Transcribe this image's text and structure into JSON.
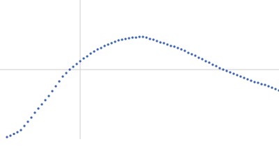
{
  "chart_data": {
    "type": "scatter",
    "xlim": [
      0,
      400
    ],
    "ylim": [
      0,
      200
    ],
    "xref": 115,
    "yref": 100,
    "ref_color": "#cccccc",
    "series": [
      {
        "color": "#3a63b0",
        "x": [
          10,
          15,
          20,
          25,
          30,
          35,
          40,
          45,
          50,
          55,
          60,
          65,
          70,
          75,
          80,
          85,
          90,
          95,
          100,
          105,
          110,
          115,
          120,
          125,
          130,
          135,
          140,
          145,
          150,
          155,
          160,
          165,
          170,
          175,
          180,
          185,
          190,
          195,
          200,
          205,
          210,
          215,
          220,
          225,
          230,
          235,
          240,
          245,
          250,
          255,
          260,
          265,
          270,
          275,
          280,
          285,
          290,
          295,
          300,
          305,
          310,
          315,
          320,
          325,
          330,
          335,
          340,
          345,
          350,
          355,
          360,
          365,
          370,
          375,
          380,
          385,
          390,
          395,
          400
        ],
        "values": [
          3,
          5,
          7.5,
          10,
          13,
          19,
          25,
          31,
          38,
          44,
          50,
          56,
          62,
          69,
          76,
          83,
          90,
          95,
          100,
          104,
          108,
          112,
          116,
          119,
          123,
          126,
          129,
          131,
          134,
          136,
          138,
          140,
          142,
          143,
          144,
          145,
          146,
          146,
          147,
          147,
          146,
          144,
          143,
          141,
          139,
          138,
          136,
          134,
          133,
          131,
          129,
          127,
          124,
          122,
          120,
          117,
          115,
          112,
          110,
          107,
          105,
          102,
          100,
          98,
          96,
          94,
          92,
          90,
          88,
          86,
          84,
          82,
          81,
          79,
          78,
          76,
          74,
          72,
          70
        ]
      }
    ]
  }
}
